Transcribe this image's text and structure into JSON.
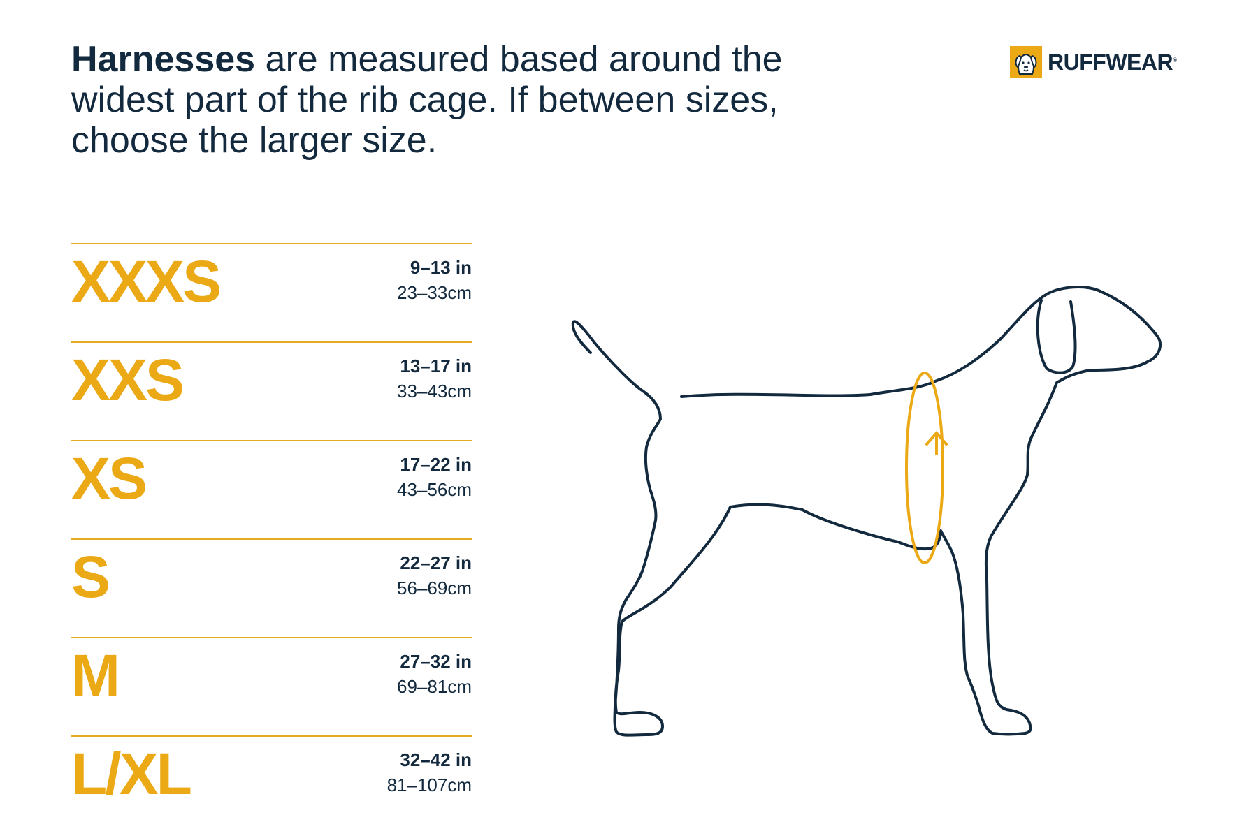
{
  "header": {
    "headline_bold": "Harnesses",
    "headline_rest": " are measured based around the widest part of the rib cage. If between sizes, choose the larger size."
  },
  "brand": {
    "name": "RUFFWEAR",
    "mark": "®",
    "accent_color": "#eba916",
    "text_color": "#132a3e"
  },
  "sizes": [
    {
      "label": "XXXS",
      "inches": "9–13 in",
      "cm": "23–33cm"
    },
    {
      "label": "XXS",
      "inches": "13–17 in",
      "cm": "33–43cm"
    },
    {
      "label": "XS",
      "inches": "17–22 in",
      "cm": "43–56cm"
    },
    {
      "label": "S",
      "inches": "22–27 in",
      "cm": "56–69cm"
    },
    {
      "label": "M",
      "inches": "27–32 in",
      "cm": "69–81cm"
    },
    {
      "label": "L/XL",
      "inches": "32–42 in",
      "cm": "81–107cm"
    }
  ],
  "illustration": {
    "subject": "dog-outline-icon",
    "measure_marker": "girth-measurement-loop-icon"
  }
}
